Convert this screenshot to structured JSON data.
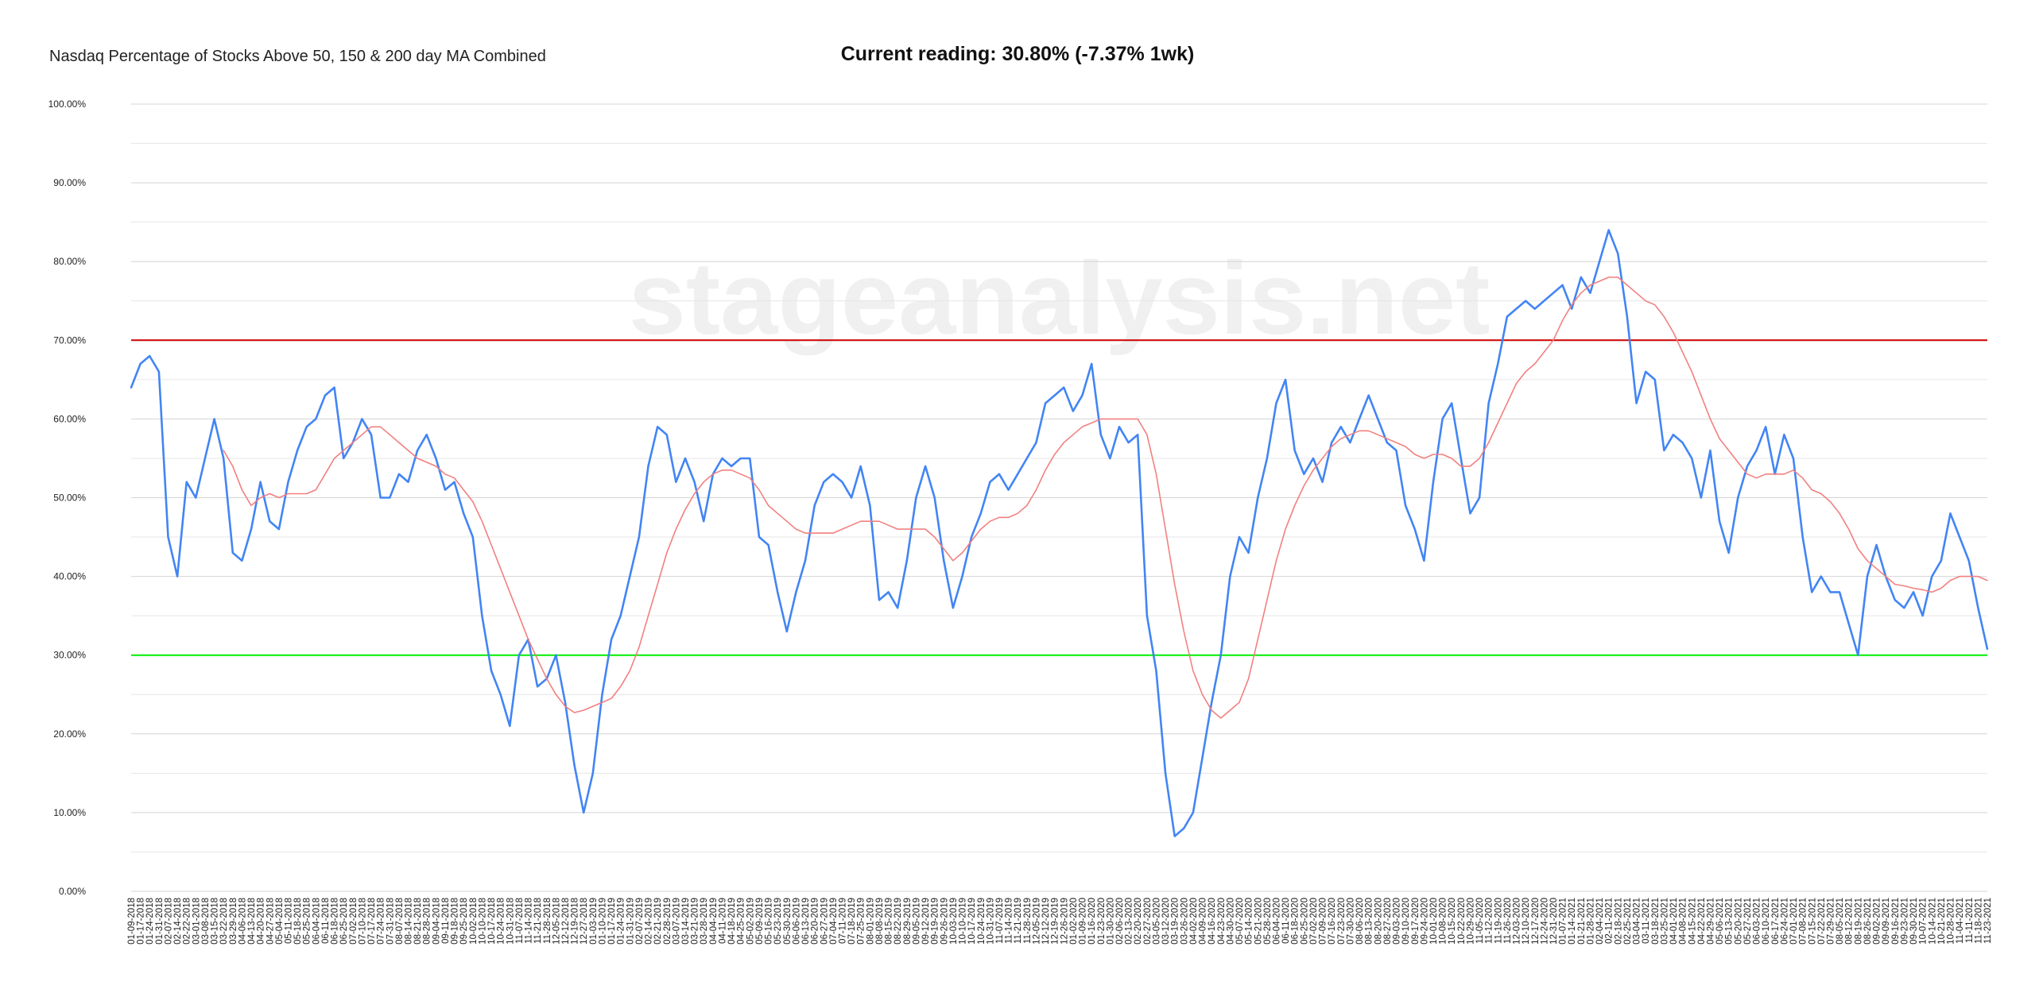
{
  "chart_data": {
    "type": "line",
    "title": "Nasdaq Percentage of Stocks Above 50, 150 & 200 day MA Combined",
    "subtitle": "Current reading: 30.80% (-7.37% 1wk)",
    "xlabel": "",
    "ylabel": "",
    "ylim": [
      0,
      100
    ],
    "yticks": [
      "0.00%",
      "10.00%",
      "20.00%",
      "30.00%",
      "40.00%",
      "50.00%",
      "60.00%",
      "70.00%",
      "80.00%",
      "90.00%",
      "100.00%"
    ],
    "grid": true,
    "reference_lines": [
      {
        "value": 70,
        "color": "#cc0000"
      },
      {
        "value": 30,
        "color": "#00ee00"
      }
    ],
    "colors": {
      "series": "#4285f4",
      "moving_average": "#f28080"
    },
    "x": [
      "01-09-2018",
      "01-17-2018",
      "01-24-2018",
      "01-31-2018",
      "02-07-2018",
      "02-14-2018",
      "02-22-2018",
      "03-01-2018",
      "03-08-2018",
      "03-15-2018",
      "03-22-2018",
      "03-29-2018",
      "04-06-2018",
      "04-13-2018",
      "04-20-2018",
      "04-27-2018",
      "05-04-2018",
      "05-11-2018",
      "05-18-2018",
      "05-25-2018",
      "06-04-2018",
      "06-11-2018",
      "06-18-2018",
      "06-25-2018",
      "07-02-2018",
      "07-10-2018",
      "07-17-2018",
      "07-24-2018",
      "07-31-2018",
      "08-07-2018",
      "08-14-2018",
      "08-21-2018",
      "08-28-2018",
      "09-04-2018",
      "09-11-2018",
      "09-18-2018",
      "09-25-2018",
      "10-02-2018",
      "10-10-2018",
      "10-17-2018",
      "10-24-2018",
      "10-31-2018",
      "11-07-2018",
      "11-14-2018",
      "11-21-2018",
      "11-28-2018",
      "12-05-2018",
      "12-12-2018",
      "12-19-2018",
      "12-27-2018",
      "01-03-2019",
      "01-10-2019",
      "01-17-2019",
      "01-24-2019",
      "01-31-2019",
      "02-07-2019",
      "02-14-2019",
      "02-21-2019",
      "02-28-2019",
      "03-07-2019",
      "03-14-2019",
      "03-21-2019",
      "03-28-2019",
      "04-04-2019",
      "04-11-2019",
      "04-18-2019",
      "04-25-2019",
      "05-02-2019",
      "05-09-2019",
      "05-16-2019",
      "05-23-2019",
      "05-30-2019",
      "06-06-2019",
      "06-13-2019",
      "06-20-2019",
      "06-27-2019",
      "07-04-2019",
      "07-11-2019",
      "07-18-2019",
      "07-25-2019",
      "08-01-2019",
      "08-08-2019",
      "08-15-2019",
      "08-22-2019",
      "08-29-2019",
      "09-05-2019",
      "09-12-2019",
      "09-19-2019",
      "09-26-2019",
      "10-03-2019",
      "10-10-2019",
      "10-17-2019",
      "10-24-2019",
      "10-31-2019",
      "11-07-2019",
      "11-14-2019",
      "11-21-2019",
      "11-28-2019",
      "12-05-2019",
      "12-12-2019",
      "12-19-2019",
      "12-26-2019",
      "01-02-2020",
      "01-09-2020",
      "01-16-2020",
      "01-23-2020",
      "01-30-2020",
      "02-06-2020",
      "02-13-2020",
      "02-20-2020",
      "02-27-2020",
      "03-05-2020",
      "03-12-2020",
      "03-19-2020",
      "03-26-2020",
      "04-02-2020",
      "04-09-2020",
      "04-16-2020",
      "04-23-2020",
      "04-30-2020",
      "05-07-2020",
      "05-14-2020",
      "05-21-2020",
      "05-28-2020",
      "06-04-2020",
      "06-11-2020",
      "06-18-2020",
      "06-25-2020",
      "07-02-2020",
      "07-09-2020",
      "07-16-2020",
      "07-23-2020",
      "07-30-2020",
      "08-06-2020",
      "08-13-2020",
      "08-20-2020",
      "08-27-2020",
      "09-03-2020",
      "09-10-2020",
      "09-17-2020",
      "09-24-2020",
      "10-01-2020",
      "10-08-2020",
      "10-15-2020",
      "10-22-2020",
      "10-29-2020",
      "11-05-2020",
      "11-12-2020",
      "11-19-2020",
      "11-26-2020",
      "12-03-2020",
      "12-10-2020",
      "12-17-2020",
      "12-24-2020",
      "12-31-2020",
      "01-07-2021",
      "01-14-2021",
      "01-21-2021",
      "01-28-2021",
      "02-04-2021",
      "02-11-2021",
      "02-18-2021",
      "02-25-2021",
      "03-04-2021",
      "03-11-2021",
      "03-18-2021",
      "03-25-2021",
      "04-01-2021",
      "04-08-2021",
      "04-15-2021",
      "04-22-2021",
      "04-29-2021",
      "05-06-2021",
      "05-13-2021",
      "05-20-2021",
      "05-27-2021",
      "06-03-2021",
      "06-10-2021",
      "06-17-2021",
      "06-24-2021",
      "07-01-2021",
      "07-08-2021",
      "07-15-2021",
      "07-22-2021",
      "07-29-2021",
      "08-05-2021",
      "08-12-2021",
      "08-19-2021",
      "08-26-2021",
      "09-02-2021",
      "09-09-2021",
      "09-16-2021",
      "09-23-2021",
      "09-30-2021",
      "10-07-2021",
      "10-14-2021",
      "10-21-2021",
      "10-28-2021",
      "11-04-2021",
      "11-11-2021",
      "11-18-2021",
      "11-23-2021"
    ],
    "series": [
      {
        "values": [
          64,
          67,
          68,
          66,
          45,
          40,
          52,
          50,
          55,
          60,
          55,
          43,
          42,
          46,
          52,
          47,
          46,
          52,
          56,
          59,
          60,
          63,
          64,
          55,
          57,
          60,
          58,
          50,
          50,
          53,
          52,
          56,
          58,
          55,
          51,
          52,
          48,
          45,
          35,
          28,
          25,
          21,
          30,
          32,
          26,
          27,
          30,
          24,
          16,
          10,
          15,
          25,
          32,
          35,
          40,
          45,
          54,
          59,
          58,
          52,
          55,
          52,
          47,
          53,
          55,
          54,
          55,
          55,
          45,
          44,
          38,
          33,
          38,
          42,
          49,
          52,
          53,
          52,
          50,
          54,
          49,
          37,
          38,
          36,
          42,
          50,
          54,
          50,
          42,
          36,
          40,
          45,
          48,
          52,
          53,
          51,
          53,
          55,
          57,
          62,
          63,
          64,
          61,
          63,
          67,
          58,
          55,
          59,
          57,
          58,
          35,
          28,
          15,
          7,
          8,
          10,
          17,
          24,
          30,
          40,
          45,
          43,
          50,
          55,
          62,
          65,
          56,
          53,
          55,
          52,
          57,
          59,
          57,
          60,
          63,
          60,
          57,
          56,
          49,
          46,
          42,
          52,
          60,
          62,
          55,
          48,
          50,
          62,
          67,
          73,
          74,
          75,
          74,
          75,
          76,
          77,
          74,
          78,
          76,
          80,
          84,
          81,
          73,
          62,
          66,
          65,
          56,
          58,
          57,
          55,
          50,
          56,
          47,
          43,
          50,
          54,
          56,
          59,
          53,
          58,
          55,
          45,
          38,
          40,
          38,
          38,
          34,
          30,
          40,
          44,
          40,
          37,
          36,
          38,
          35,
          40,
          42,
          48,
          45,
          42,
          36,
          30.8
        ]
      },
      {
        "values": [
          null,
          null,
          null,
          null,
          null,
          null,
          null,
          null,
          null,
          null,
          56,
          54,
          51,
          49,
          50,
          50.5,
          50,
          50.5,
          50.5,
          50.5,
          51,
          53,
          55,
          56,
          57,
          58,
          59,
          59,
          58,
          57,
          56,
          55,
          54.5,
          54,
          53,
          52.5,
          51,
          49.5,
          47,
          44,
          41,
          38,
          35,
          32,
          29.5,
          27,
          25,
          23.5,
          22.7,
          23,
          23.5,
          24,
          24.5,
          26,
          28,
          31,
          35,
          39,
          43,
          46,
          48.5,
          50.5,
          52,
          53,
          53.5,
          53.5,
          53,
          52.5,
          51,
          49,
          48,
          47,
          46,
          45.5,
          45.5,
          45.5,
          45.5,
          46,
          46.5,
          47,
          47,
          47,
          46.5,
          46,
          46,
          46,
          46,
          45,
          43.5,
          42,
          43,
          44.5,
          46,
          47,
          47.5,
          47.5,
          48,
          49,
          51,
          53.5,
          55.5,
          57,
          58,
          59,
          59.5,
          60,
          60,
          60,
          60,
          60,
          58,
          53,
          46,
          39,
          33,
          28,
          25,
          23,
          22,
          23,
          24,
          27,
          32,
          37,
          42,
          46,
          49,
          51.5,
          53.5,
          55,
          56.5,
          57.5,
          58,
          58.5,
          58.5,
          58,
          57.5,
          57,
          56.5,
          55.5,
          55,
          55.5,
          55.5,
          55,
          54,
          54,
          55,
          57,
          59.5,
          62,
          64.5,
          66,
          67,
          68.5,
          70,
          72.5,
          74.5,
          76,
          77,
          77.5,
          78,
          78,
          77,
          76,
          75,
          74.5,
          73,
          71,
          68.5,
          66,
          63,
          60,
          57.5,
          56,
          54.5,
          53,
          52.5,
          53,
          53,
          53,
          53.5,
          52.5,
          51,
          50.5,
          49.5,
          48,
          46,
          43.5,
          42,
          41,
          40,
          39,
          38.8,
          38.5,
          38.3,
          38,
          38.5,
          39.5,
          40,
          40,
          40,
          39.5
        ]
      }
    ],
    "watermark": "stageanalysis.net"
  }
}
